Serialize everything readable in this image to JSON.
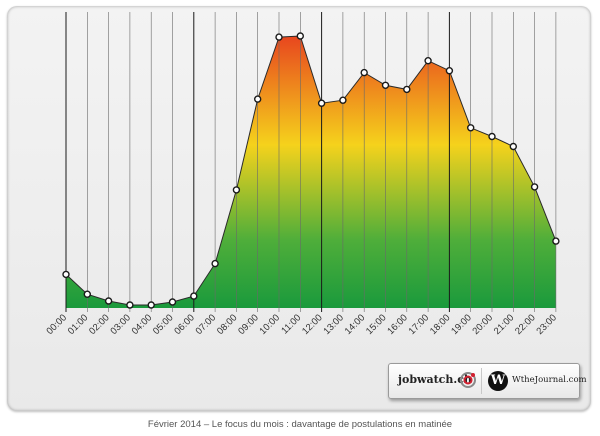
{
  "caption": "Février 2014 – Le focus du mois : davantage de postulations en matinée",
  "logos": {
    "jobwatch": "jobwatch.ch",
    "w_letter": "W",
    "wthejournal": "WtheJournal.com"
  },
  "colors": {
    "low": "#1a9a3c",
    "mid": "#f5d21c",
    "high": "#e8461e",
    "point_fill": "#ffffff",
    "point_stroke": "#1a1a1a"
  },
  "chart_data": {
    "type": "area",
    "title": "",
    "xlabel": "",
    "ylabel": "",
    "categories": [
      "00:00",
      "01:00",
      "02:00",
      "03:00",
      "04:00",
      "05:00",
      "06:00",
      "07:00",
      "08:00",
      "09:00",
      "10:00",
      "11:00",
      "12:00",
      "13:00",
      "14:00",
      "15:00",
      "16:00",
      "17:00",
      "18:00",
      "19:00",
      "20:00",
      "21:00",
      "22:00",
      "23:00"
    ],
    "series": [
      {
        "values": [
          12.4,
          5.1,
          2.6,
          1.1,
          1.1,
          2.2,
          4.4,
          16.4,
          43.6,
          77.1,
          100,
          100.4,
          75.6,
          76.7,
          86.9,
          82.2,
          80.7,
          91.3,
          87.6,
          66.5,
          63.3,
          59.6,
          44.7,
          24.7
        ]
      }
    ],
    "ylim": [
      0,
      100.4
    ],
    "grid": "vertical lines at each hour, darker at 00:00, 06:00, 12:00 and 18:00",
    "legend": "none",
    "gradient": "green at bottom through yellow to red at top"
  }
}
